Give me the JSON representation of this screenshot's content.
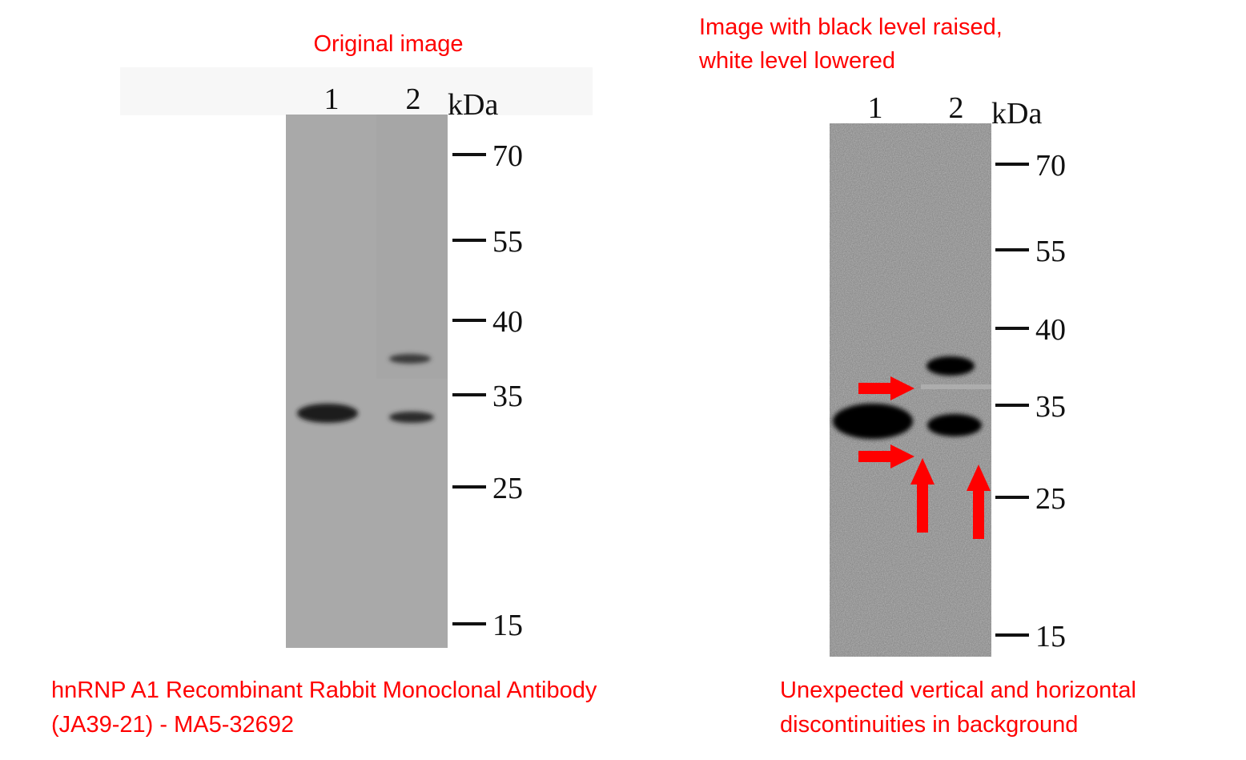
{
  "left": {
    "title": "Original image",
    "lanes": [
      "1",
      "2"
    ],
    "unit": "kDa",
    "markers": [
      70,
      55,
      40,
      35,
      25,
      15
    ],
    "caption": [
      "hnRNP A1 Recombinant Rabbit Monoclonal Antibody",
      "(JA39-21) - MA5-32692"
    ]
  },
  "right": {
    "title": [
      "Image with black level raised,",
      "white level lowered"
    ],
    "lanes": [
      "1",
      "2"
    ],
    "unit": "kDa",
    "markers": [
      70,
      55,
      40,
      35,
      25,
      15
    ],
    "caption": [
      "Unexpected vertical and horizontal",
      "discontinuities in background"
    ]
  }
}
